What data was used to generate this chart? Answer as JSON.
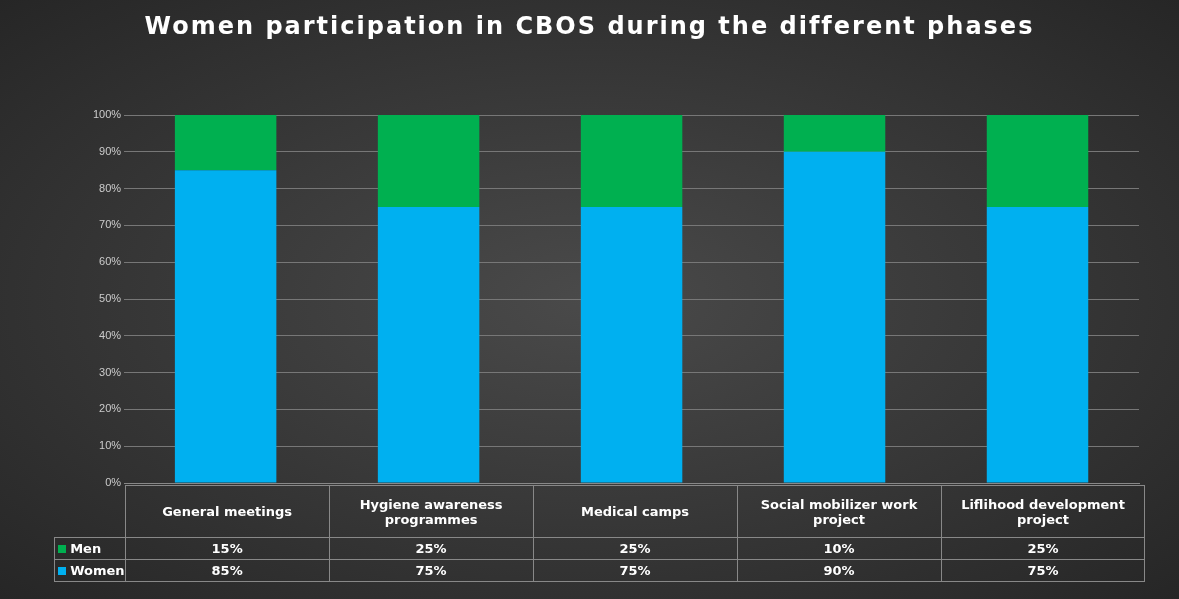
{
  "chart_data": {
    "type": "bar",
    "title": "Women participation in CBOS during the different phases",
    "categories": [
      "General meetings",
      "Hygiene awareness programmes",
      "Medical camps",
      "Social mobilizer work project",
      "Liflihood development project"
    ],
    "series": [
      {
        "name": "Women",
        "color": "#00b0f0",
        "values": [
          85,
          75,
          75,
          90,
          75
        ],
        "value_labels": [
          "85%",
          "75%",
          "75%",
          "90%",
          "75%"
        ]
      },
      {
        "name": "Men",
        "color": "#00b050",
        "values": [
          15,
          25,
          25,
          10,
          25
        ],
        "value_labels": [
          "15%",
          "25%",
          "25%",
          "10%",
          "25%"
        ]
      }
    ],
    "stacked": true,
    "ylim": [
      0,
      100
    ],
    "yticks": [
      {
        "value": 0,
        "label": "0%"
      },
      {
        "value": 10,
        "label": "10%"
      },
      {
        "value": 20,
        "label": "20%"
      },
      {
        "value": 30,
        "label": "30%"
      },
      {
        "value": 40,
        "label": "40%"
      },
      {
        "value": 50,
        "label": "50%"
      },
      {
        "value": 60,
        "label": "60%"
      },
      {
        "value": 70,
        "label": "70%"
      },
      {
        "value": 80,
        "label": "80%"
      },
      {
        "value": 90,
        "label": "90%"
      },
      {
        "value": 100,
        "label": "100%"
      }
    ],
    "grid": "y",
    "legend": "bottom"
  }
}
